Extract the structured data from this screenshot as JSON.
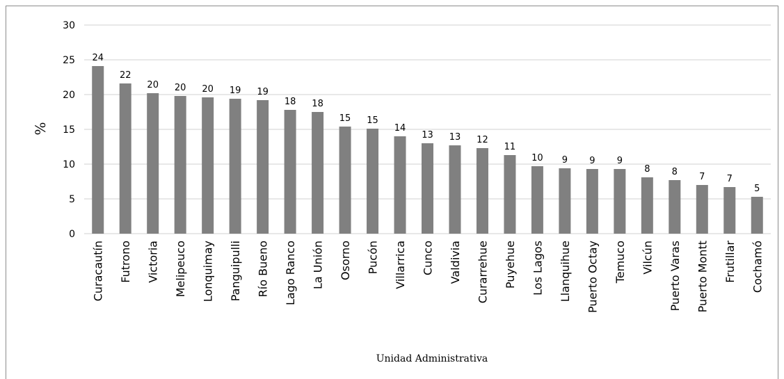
{
  "chart_data": {
    "type": "bar",
    "title": "",
    "xlabel": "Unidad Administrativa",
    "ylabel": "%",
    "ylim": [
      0,
      30
    ],
    "yticks": [
      0,
      5,
      10,
      15,
      20,
      25,
      30
    ],
    "grid": true,
    "legend": "none",
    "bar_color": "#808080",
    "grid_color": "#d0d0d0",
    "categories": [
      "Curacautín",
      "Futrono",
      "Victoria",
      "Melipeuco",
      "Lonquimay",
      "Panguipulli",
      "Río Bueno",
      "Lago Ranco",
      "La Unión",
      "Osorno",
      "Pucón",
      "Villarrica",
      "Cunco",
      "Valdivia",
      "Curarrehue",
      "Puyehue",
      "Los Lagos",
      "Llanquihue",
      "Puerto Octay",
      "Temuco",
      "Vilcún",
      "Puerto Varas",
      "Puerto Montt",
      "Frutillar",
      "Cochamó"
    ],
    "values": [
      24.1,
      21.6,
      20.2,
      19.8,
      19.6,
      19.4,
      19.2,
      17.8,
      17.5,
      15.4,
      15.1,
      14.0,
      13.0,
      12.7,
      12.3,
      11.3,
      9.7,
      9.4,
      9.3,
      9.3,
      8.1,
      7.7,
      7.0,
      6.7,
      5.3
    ],
    "data_labels": [
      "24",
      "22",
      "20",
      "20",
      "20",
      "19",
      "19",
      "18",
      "18",
      "15",
      "15",
      "14",
      "13",
      "13",
      "12",
      "11",
      "10",
      "9",
      "9",
      "9",
      "8",
      "8",
      "7",
      "7",
      "5"
    ]
  }
}
